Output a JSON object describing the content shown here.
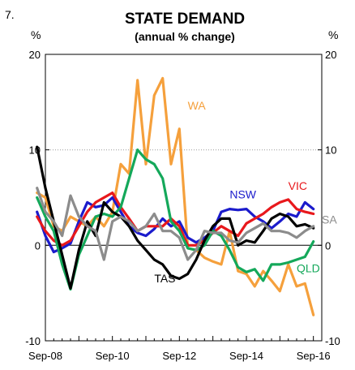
{
  "chart_data": {
    "type": "line",
    "figure_number": "7.",
    "title": "STATE DEMAND",
    "subtitle": "(annual % change)",
    "ylabel_left": "%",
    "ylabel_right": "%",
    "ylim": [
      -10,
      20
    ],
    "yticks": [
      "20",
      "10",
      "0",
      "-10"
    ],
    "xtick_labels": [
      "Sep-08",
      "Sep-10",
      "Sep-12",
      "Sep-14",
      "Sep-16"
    ],
    "x_range": [
      "2008-09",
      "2016-12"
    ],
    "grid": "dotted line at 10",
    "legend": "labels placed next to series",
    "series": [
      {
        "name": "WA",
        "color": "#F5A03C",
        "x": [
          "2008-06",
          "2008-09",
          "2008-12",
          "2009-03",
          "2009-06",
          "2009-09",
          "2009-12",
          "2010-03",
          "2010-06",
          "2010-09",
          "2010-12",
          "2011-03",
          "2011-06",
          "2011-09",
          "2011-12",
          "2012-03",
          "2012-06",
          "2012-09",
          "2012-12",
          "2013-03",
          "2013-06",
          "2013-09",
          "2013-12",
          "2014-03",
          "2014-06",
          "2014-09",
          "2014-12",
          "2015-03",
          "2015-06",
          "2015-09",
          "2015-12",
          "2016-03",
          "2016-06",
          "2016-09"
        ],
        "values": [
          5.5,
          5.0,
          2.0,
          1.5,
          3.0,
          2.5,
          2.0,
          3.0,
          2.0,
          3.5,
          8.5,
          7.5,
          17.3,
          8.5,
          15.7,
          17.5,
          8.5,
          12.2,
          -0.3,
          -0.5,
          -1.3,
          -1.7,
          -2.0,
          1.5,
          -2.7,
          -3.0,
          -4.3,
          -2.7,
          -3.7,
          -4.8,
          -2.0,
          -4.3,
          -4.0,
          -7.3
        ]
      },
      {
        "name": "NSW",
        "color": "#1B1BCC",
        "x": [
          "2008-06",
          "2008-09",
          "2008-12",
          "2009-03",
          "2009-06",
          "2009-09",
          "2009-12",
          "2010-03",
          "2010-06",
          "2010-09",
          "2010-12",
          "2011-03",
          "2011-06",
          "2011-09",
          "2011-12",
          "2012-03",
          "2012-06",
          "2012-09",
          "2012-12",
          "2013-03",
          "2013-06",
          "2013-09",
          "2013-12",
          "2014-03",
          "2014-06",
          "2014-09",
          "2014-12",
          "2015-03",
          "2015-06",
          "2015-09",
          "2015-12",
          "2016-03",
          "2016-06",
          "2016-09"
        ],
        "values": [
          3.5,
          1.0,
          -0.7,
          -0.3,
          0.2,
          2.5,
          4.5,
          4.0,
          4.2,
          5.0,
          3.5,
          2.0,
          1.3,
          1.0,
          1.7,
          2.8,
          2.0,
          2.5,
          0.8,
          0.3,
          0.8,
          1.5,
          3.5,
          3.8,
          3.7,
          3.8,
          3.0,
          2.5,
          1.8,
          2.5,
          3.3,
          3.0,
          4.5,
          3.8
        ]
      },
      {
        "name": "VIC",
        "color": "#E8181C",
        "x": [
          "2008-06",
          "2008-09",
          "2008-12",
          "2009-03",
          "2009-06",
          "2009-09",
          "2009-12",
          "2010-03",
          "2010-06",
          "2010-09",
          "2010-12",
          "2011-03",
          "2011-06",
          "2011-09",
          "2011-12",
          "2012-03",
          "2012-06",
          "2012-09",
          "2012-12",
          "2013-03",
          "2013-06",
          "2013-09",
          "2013-12",
          "2014-03",
          "2014-06",
          "2014-09",
          "2014-12",
          "2015-03",
          "2015-06",
          "2015-09",
          "2015-12",
          "2016-03",
          "2016-06",
          "2016-09"
        ],
        "values": [
          3.0,
          1.5,
          0.5,
          0.0,
          0.5,
          2.0,
          3.5,
          4.5,
          5.0,
          5.5,
          4.0,
          2.8,
          1.5,
          2.0,
          2.0,
          2.0,
          2.8,
          2.0,
          0.0,
          0.0,
          0.5,
          1.3,
          2.0,
          1.5,
          1.0,
          2.3,
          2.8,
          3.3,
          4.0,
          4.5,
          4.8,
          3.8,
          3.5,
          3.3
        ]
      },
      {
        "name": "QLD",
        "color": "#14A85A",
        "x": [
          "2008-06",
          "2008-09",
          "2008-12",
          "2009-03",
          "2009-06",
          "2009-09",
          "2009-12",
          "2010-03",
          "2010-06",
          "2010-09",
          "2010-12",
          "2011-03",
          "2011-06",
          "2011-09",
          "2011-12",
          "2012-03",
          "2012-06",
          "2012-09",
          "2012-12",
          "2013-03",
          "2013-06",
          "2013-09",
          "2013-12",
          "2014-03",
          "2014-06",
          "2014-09",
          "2014-12",
          "2015-03",
          "2015-06",
          "2015-09",
          "2015-12",
          "2016-03",
          "2016-06",
          "2016-09"
        ],
        "values": [
          5.0,
          3.0,
          1.5,
          -2.0,
          -4.6,
          -1.0,
          1.0,
          3.0,
          3.3,
          3.0,
          4.0,
          7.0,
          10.0,
          9.0,
          8.5,
          7.0,
          2.5,
          1.5,
          -0.3,
          -0.5,
          0.0,
          1.5,
          1.0,
          -0.5,
          -2.3,
          -2.8,
          -2.5,
          -3.7,
          -2.0,
          -2.0,
          -1.8,
          -1.5,
          -1.2,
          0.4
        ]
      },
      {
        "name": "TAS",
        "color": "#000000",
        "x": [
          "2008-06",
          "2008-09",
          "2008-12",
          "2009-03",
          "2009-06",
          "2009-09",
          "2009-12",
          "2010-03",
          "2010-06",
          "2010-09",
          "2010-12",
          "2011-03",
          "2011-06",
          "2011-09",
          "2011-12",
          "2012-03",
          "2012-06",
          "2012-09",
          "2012-12",
          "2013-03",
          "2013-06",
          "2013-09",
          "2013-12",
          "2014-03",
          "2014-06",
          "2014-09",
          "2014-12",
          "2015-03",
          "2015-06",
          "2015-09",
          "2015-12",
          "2016-03",
          "2016-06",
          "2016-09"
        ],
        "values": [
          10.3,
          6.0,
          2.5,
          -1.0,
          -4.5,
          -0.5,
          2.5,
          1.0,
          4.5,
          3.5,
          3.0,
          2.0,
          0.5,
          -0.5,
          -1.5,
          -2.0,
          -3.2,
          -3.5,
          -3.0,
          -1.5,
          0.5,
          2.0,
          2.8,
          2.8,
          0.0,
          0.5,
          0.3,
          1.5,
          2.8,
          3.3,
          3.0,
          2.0,
          2.2,
          1.8
        ]
      },
      {
        "name": "SA",
        "color": "#8C8C8C",
        "x": [
          "2008-06",
          "2008-09",
          "2008-12",
          "2009-03",
          "2009-06",
          "2009-09",
          "2009-12",
          "2010-03",
          "2010-06",
          "2010-09",
          "2010-12",
          "2011-03",
          "2011-06",
          "2011-09",
          "2011-12",
          "2012-03",
          "2012-06",
          "2012-09",
          "2012-12",
          "2013-03",
          "2013-06",
          "2013-09",
          "2013-12",
          "2014-03",
          "2014-06",
          "2014-09",
          "2014-12",
          "2015-03",
          "2015-06",
          "2015-09",
          "2015-12",
          "2016-03",
          "2016-06",
          "2016-09"
        ],
        "values": [
          6.0,
          3.5,
          2.5,
          1.0,
          5.2,
          3.0,
          2.0,
          1.5,
          -1.5,
          2.5,
          3.0,
          2.5,
          1.5,
          2.0,
          3.3,
          1.5,
          1.5,
          0.8,
          -1.5,
          -0.5,
          1.5,
          1.3,
          1.3,
          0.5,
          0.3,
          1.3,
          1.8,
          2.3,
          1.5,
          1.5,
          1.3,
          0.8,
          1.5,
          2.0
        ]
      }
    ],
    "labels": [
      {
        "text": "WA"
      },
      {
        "text": "NSW"
      },
      {
        "text": "VIC"
      },
      {
        "text": "SA"
      },
      {
        "text": "QLD"
      },
      {
        "text": "TAS"
      }
    ]
  }
}
